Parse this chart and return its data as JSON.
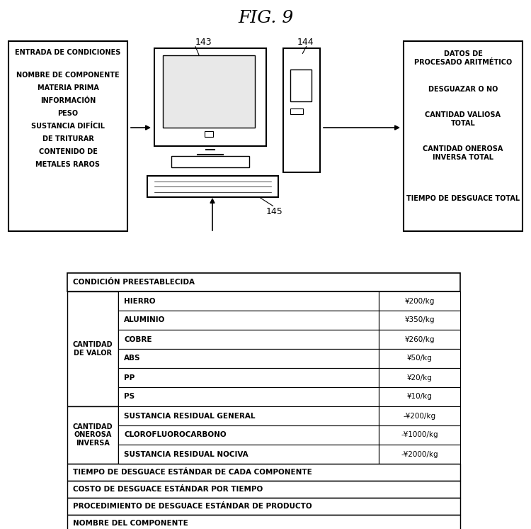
{
  "title": "FIG. 9",
  "bg_color": "#ffffff",
  "left_box": {
    "title": "ENTRADA DE CONDICIONES",
    "lines": [
      "NOMBRE DE COMPONENTE",
      "MATERIA PRIMA",
      "INFORMACIÓN",
      "PESO",
      "SUSTANCIA DIFÍCIL",
      "DE TRITURAR",
      "CONTENIDO DE",
      "METALES RAROS"
    ]
  },
  "right_box": {
    "title": "DATOS DE\nPROCESADO ARITMÉTICO",
    "lines": [
      "DESGUAZAR O NO",
      "CANTIDAD VALIOSA\nTOTAL",
      "CANTIDAD ONEROSA\nINVERSA TOTAL",
      "TIEMPO DE DESGUACE TOTAL"
    ]
  },
  "table": {
    "header": "CONDICIÓN PREESTABLECIDA",
    "rows": [
      {
        "col1": "CANTIDAD\nDE VALOR",
        "col2": "HIERRO",
        "col3": "¥200/kg"
      },
      {
        "col1": "",
        "col2": "ALUMINIO",
        "col3": "¥350/kg"
      },
      {
        "col1": "",
        "col2": "COBRE",
        "col3": "¥260/kg"
      },
      {
        "col1": "",
        "col2": "ABS",
        "col3": "¥50/kg"
      },
      {
        "col1": "",
        "col2": "PP",
        "col3": "¥20/kg"
      },
      {
        "col1": "",
        "col2": "PS",
        "col3": "¥10/kg"
      },
      {
        "col1": "CANTIDAD\nONEROSA\nINVERSA",
        "col2": "SUSTANCIA RESIDUAL GENERAL",
        "col3": "-¥200/kg"
      },
      {
        "col1": "",
        "col2": "CLOROFLUOROCARBONO",
        "col3": "-¥1000/kg"
      },
      {
        "col1": "",
        "col2": "SUSTANCIA RESIDUAL NOCIVA",
        "col3": "-¥2000/kg"
      }
    ],
    "footer_rows": [
      "TIEMPO DE DESGUACE ESTÁNDAR DE CADA COMPONENTE",
      "COSTO DE DESGUACE ESTÁNDAR POR TIEMPO",
      "PROCEDIMIENTO DE DESGUACE ESTÁNDAR DE PRODUCTO",
      "NOMBRE DEL COMPONENTE"
    ]
  }
}
